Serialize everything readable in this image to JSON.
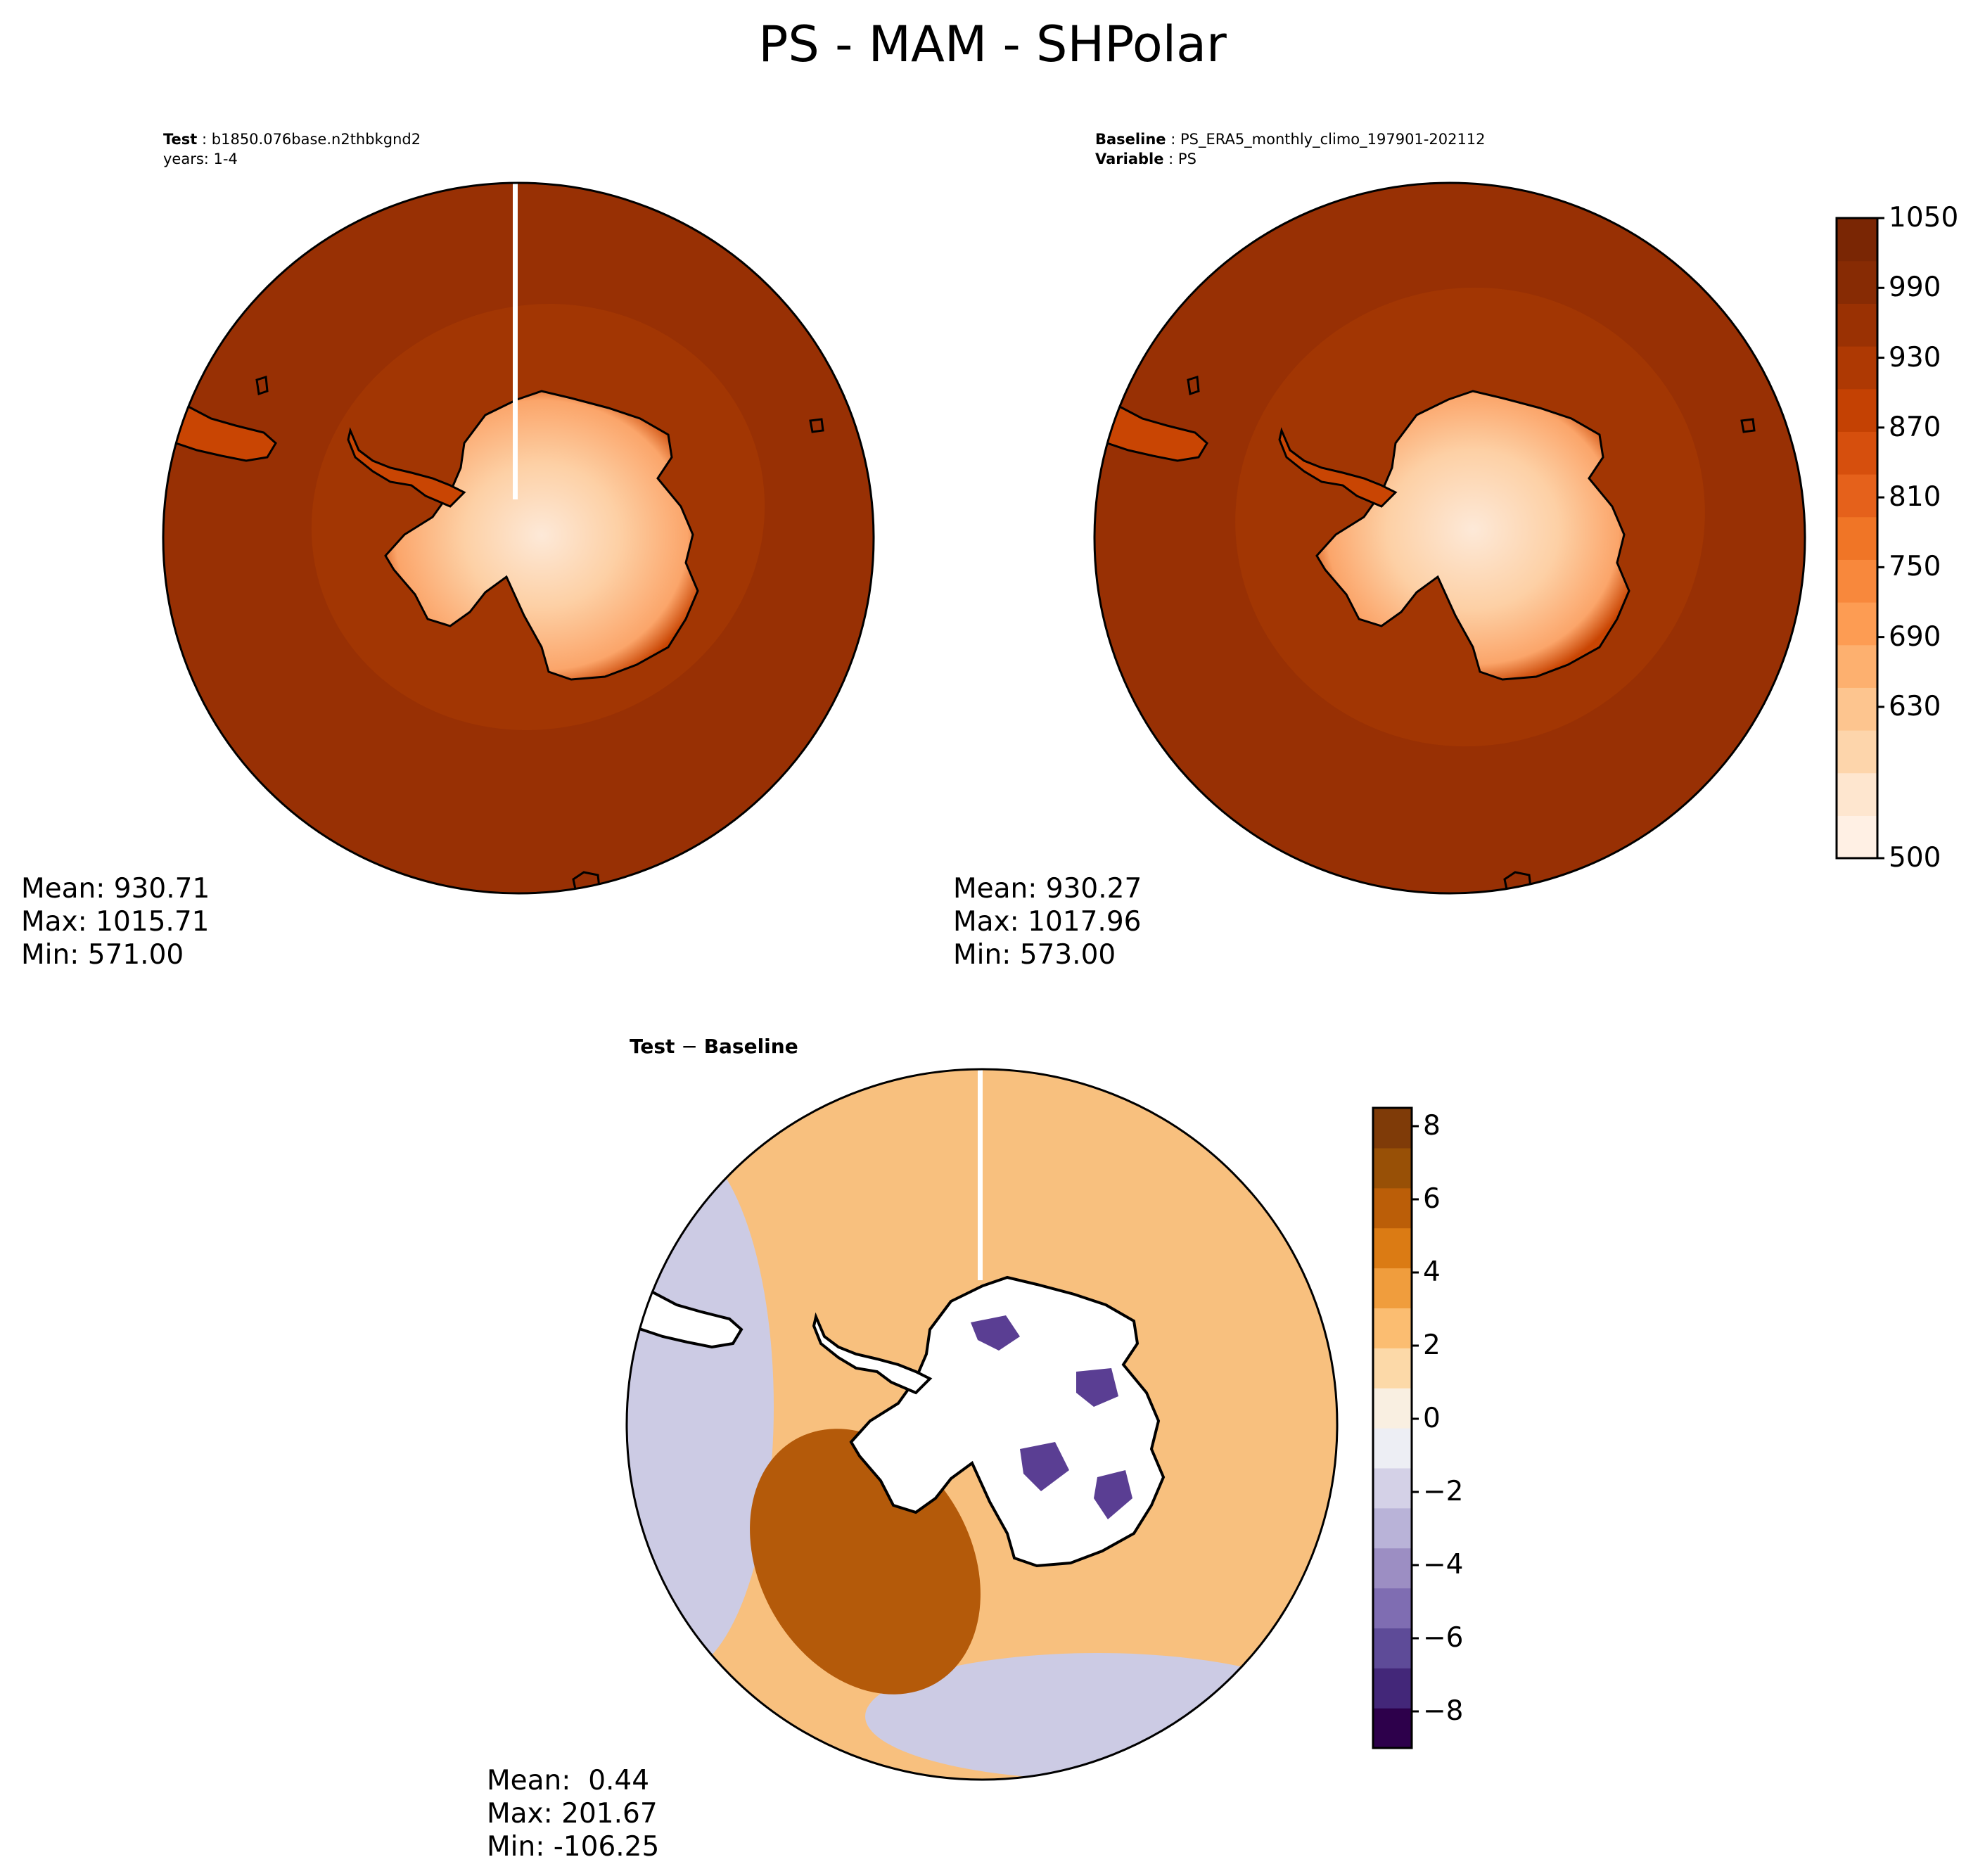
{
  "figure": {
    "title": "PS - MAM - SHPolar"
  },
  "panels": {
    "test": {
      "label_key": "Test",
      "label_value": "b1850.076base.n2thbkgnd2",
      "line2": "years: 1-4",
      "stats": {
        "mean": "Mean: 930.71",
        "max": "Max: 1015.71",
        "min": "Min: 571.00"
      }
    },
    "baseline": {
      "label_key": "Baseline",
      "label_value": "PS_ERA5_monthly_climo_197901-202112",
      "line2_key": "Variable",
      "line2_value": "PS",
      "stats": {
        "mean": "Mean: 930.27",
        "max": "Max: 1017.96",
        "min": "Min: 573.00"
      }
    },
    "diff": {
      "label_a": "Test",
      "label_op": " − ",
      "label_b": "Baseline",
      "stats": {
        "mean": "Mean:  0.44",
        "max": "Max: 201.67",
        "min": "Min: -106.25"
      }
    }
  },
  "colorbars": {
    "main": {
      "colormap": "Oranges",
      "range": [
        500,
        1050
      ],
      "tick_labels": [
        "1050",
        "990",
        "930",
        "870",
        "810",
        "750",
        "690",
        "630",
        "500"
      ],
      "colors": [
        "#fff0e4",
        "#fee6cf",
        "#fdd5ab",
        "#fdc58f",
        "#fdb06f",
        "#fd9c53",
        "#f8883c",
        "#f07526",
        "#e5611b",
        "#d64f0d",
        "#c44103",
        "#ae3903",
        "#9a3103",
        "#872b04",
        "#7a2604"
      ]
    },
    "diff": {
      "colormap": "PuOr_r",
      "range": [
        -9,
        8.5
      ],
      "tick_labels": [
        "8",
        "6",
        "4",
        "2",
        "0",
        "−2",
        "−4",
        "−6",
        "−8"
      ],
      "colors": [
        "#2d004b",
        "#432779",
        "#5e4b98",
        "#7f6db2",
        "#9c8ec3",
        "#b9b3d8",
        "#d4d1e7",
        "#edeef4",
        "#f9efe1",
        "#fcd9a8",
        "#fbbd71",
        "#f09d3d",
        "#db7b14",
        "#bb5e08",
        "#985006",
        "#7f3b08"
      ]
    }
  },
  "map_colors": {
    "ocean_main": "#983004",
    "ocean_ring": "#a23603",
    "coast_low": "#c94503",
    "ice_mid": "#fba56a",
    "ice_light": "#fdd0a5",
    "ice_lightest": "#fde9d8",
    "diff_main": "#f8c07e",
    "diff_pos_strong": "#b45a0a",
    "diff_neg": "#cccbe4",
    "diff_land_neg": "#5a3e93"
  }
}
